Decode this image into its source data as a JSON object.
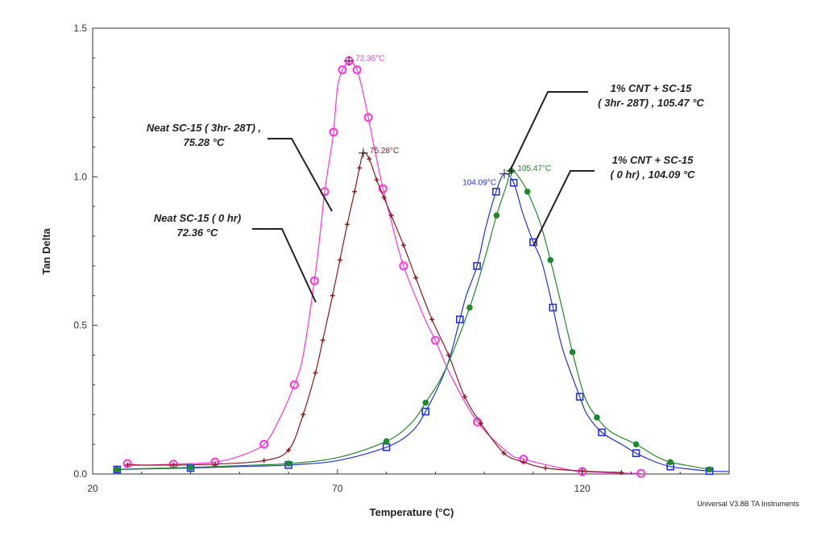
{
  "chart_data": {
    "type": "line",
    "xlabel": "Temperature (°C)",
    "ylabel": "Tan Delta",
    "xlim": [
      20,
      150
    ],
    "ylim": [
      0,
      1.5
    ],
    "x_ticks": [
      "20",
      "70",
      "120"
    ],
    "y_ticks": [
      "0.0",
      "0.5",
      "1.0",
      "1.5"
    ],
    "credit": "Universal V3.8B TA Instruments",
    "grid": false,
    "series": [
      {
        "name": "Neat SC-15 ( 0 hr)",
        "color": "#ff33dd",
        "marker": "circle",
        "peak_x": 72.36,
        "peak_y": 1.39,
        "peak_label": "72.36°C",
        "x": [
          27.1,
          30,
          36.5,
          40,
          45,
          50,
          55,
          58,
          61.2,
          63,
          65.3,
          66.4,
          67.4,
          68.3,
          69.2,
          70,
          71,
          71.8,
          72.36,
          73,
          74,
          75,
          76.3,
          77.5,
          79.3,
          81,
          83.5,
          87.9,
          90,
          93.2,
          98.6,
          105,
          108,
          117,
          120,
          128.1,
          132
        ],
        "y": [
          0.035,
          0.03,
          0.033,
          0.035,
          0.04,
          0.06,
          0.1,
          0.18,
          0.3,
          0.4,
          0.65,
          0.8,
          0.95,
          1.05,
          1.15,
          1.3,
          1.36,
          1.38,
          1.39,
          1.385,
          1.36,
          1.3,
          1.2,
          1.1,
          0.96,
          0.85,
          0.7,
          0.52,
          0.45,
          0.33,
          0.175,
          0.07,
          0.05,
          0.015,
          0.008,
          0.003,
          0.002
        ]
      },
      {
        "name": "Neat SC-15 ( 3hr- 28T)",
        "color": "#8b1a1a",
        "marker": "plus",
        "peak_x": 75.28,
        "peak_y": 1.08,
        "peak_label": "75.28°C",
        "x": [
          27.1,
          36.5,
          45,
          55,
          60,
          63,
          65.5,
          67,
          69,
          70.5,
          72,
          73.5,
          74.5,
          75.28,
          76.5,
          78,
          79.5,
          81,
          83.5,
          86,
          89.3,
          92.7,
          96,
          99.3,
          104,
          108,
          112.5,
          120,
          128
        ],
        "y": [
          0.03,
          0.03,
          0.033,
          0.045,
          0.08,
          0.2,
          0.34,
          0.45,
          0.6,
          0.72,
          0.84,
          0.95,
          1.03,
          1.08,
          1.06,
          0.99,
          0.93,
          0.87,
          0.77,
          0.66,
          0.52,
          0.4,
          0.26,
          0.17,
          0.07,
          0.04,
          0.02,
          0.01,
          0.005
        ]
      },
      {
        "name": "1% CNT + SC-15 ( 0 hr)",
        "color": "#2233dd",
        "marker": "square",
        "peak_x": 104.09,
        "peak_y": 1.01,
        "peak_label": "104.09°C",
        "x": [
          25,
          30,
          40,
          50,
          60,
          70,
          80,
          85,
          88,
          92.3,
          95,
          96.3,
          98.5,
          100.3,
          102.4,
          104.09,
          106,
          107.8,
          110,
          111.8,
          114,
          116,
          119.5,
          121,
          124,
          128,
          131,
          135,
          138,
          141,
          146,
          150
        ],
        "y": [
          0.015,
          0.017,
          0.02,
          0.025,
          0.03,
          0.045,
          0.09,
          0.14,
          0.21,
          0.36,
          0.52,
          0.6,
          0.7,
          0.83,
          0.95,
          1.01,
          0.98,
          0.88,
          0.78,
          0.71,
          0.56,
          0.42,
          0.26,
          0.2,
          0.14,
          0.1,
          0.07,
          0.04,
          0.025,
          0.018,
          0.01,
          0.008
        ]
      },
      {
        "name": "1% CNT + SC-15 ( 3hr- 28T)",
        "color": "#1f8a2a",
        "marker": "dot",
        "peak_x": 105.47,
        "peak_y": 1.02,
        "peak_label": "105.47°C",
        "x": [
          25,
          30,
          40,
          50,
          60,
          70,
          80,
          85,
          88,
          92,
          97,
          100,
          102.5,
          104.5,
          105.47,
          107,
          108.8,
          111.3,
          113.5,
          116,
          118,
          120.5,
          123,
          126,
          131,
          135,
          138,
          141,
          146
        ],
        "y": [
          0.015,
          0.018,
          0.022,
          0.028,
          0.035,
          0.055,
          0.11,
          0.17,
          0.24,
          0.35,
          0.56,
          0.72,
          0.87,
          0.97,
          1.02,
          1.0,
          0.95,
          0.85,
          0.72,
          0.55,
          0.41,
          0.26,
          0.19,
          0.14,
          0.1,
          0.06,
          0.04,
          0.03,
          0.015
        ]
      }
    ],
    "annotations": [
      {
        "text_lines": [
          "Neat SC-15 ( 3hr- 28T) ,",
          "75.28 °C"
        ],
        "series_index": 1
      },
      {
        "text_lines": [
          "Neat SC-15 ( 0 hr)",
          "72.36 °C"
        ],
        "series_index": 0
      },
      {
        "text_lines": [
          "1% CNT + SC-15",
          "( 3hr- 28T) , 105.47 °C"
        ],
        "series_index": 3
      },
      {
        "text_lines": [
          "1% CNT + SC-15",
          "( 0 hr) , 104.09 °C"
        ],
        "series_index": 2
      }
    ]
  }
}
